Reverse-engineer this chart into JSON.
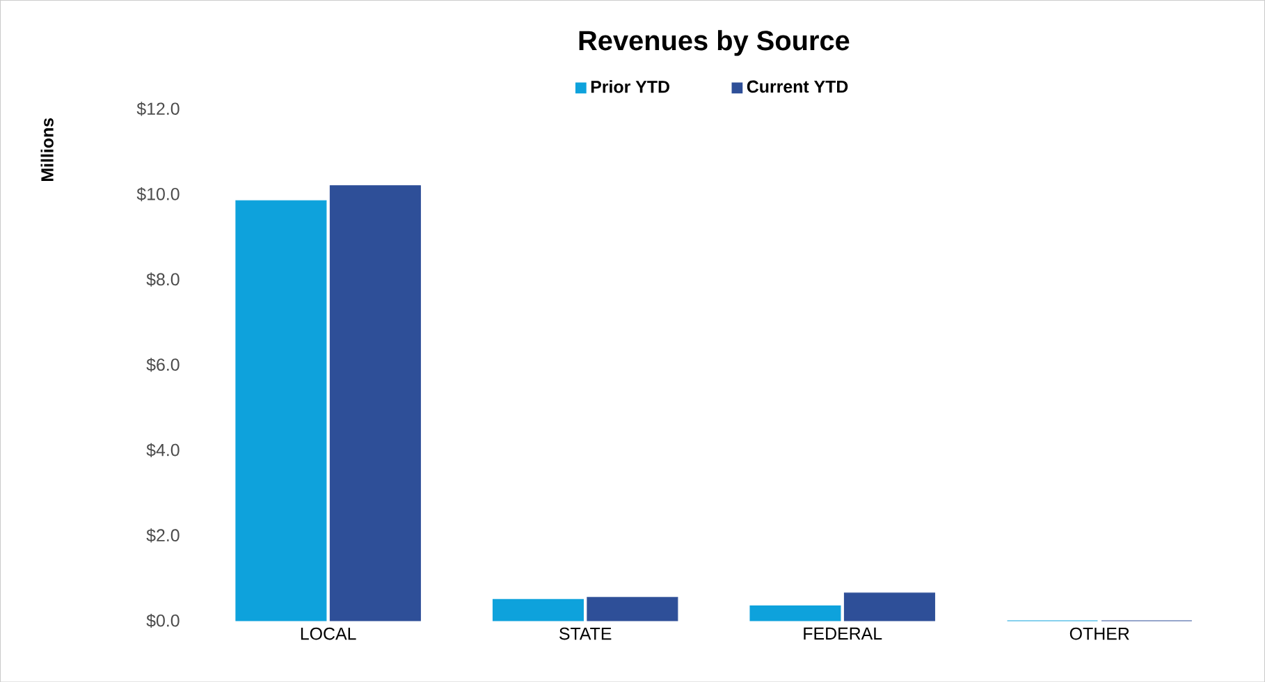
{
  "chart_data": {
    "type": "bar",
    "title": "Revenues by Source",
    "ylabel": "Millions",
    "categories": [
      "LOCAL",
      "STATE",
      "FEDERAL",
      "OTHER"
    ],
    "series": [
      {
        "name": "Prior YTD",
        "color": "#0ea2dc",
        "values": [
          9.85,
          0.5,
          0.35,
          0
        ]
      },
      {
        "name": "Current YTD",
        "color": "#2e4f98",
        "values": [
          10.2,
          0.55,
          0.65,
          0
        ]
      }
    ],
    "ylim": [
      0,
      12
    ],
    "yticks": [
      {
        "value": 0,
        "label": "$0.0"
      },
      {
        "value": 2,
        "label": "$2.0"
      },
      {
        "value": 4,
        "label": "$4.0"
      },
      {
        "value": 6,
        "label": "$6.0"
      },
      {
        "value": 8,
        "label": "$8.0"
      },
      {
        "value": 10,
        "label": "$10.0"
      },
      {
        "value": 12,
        "label": "$12.0"
      }
    ],
    "legend": "top",
    "grid": false
  }
}
